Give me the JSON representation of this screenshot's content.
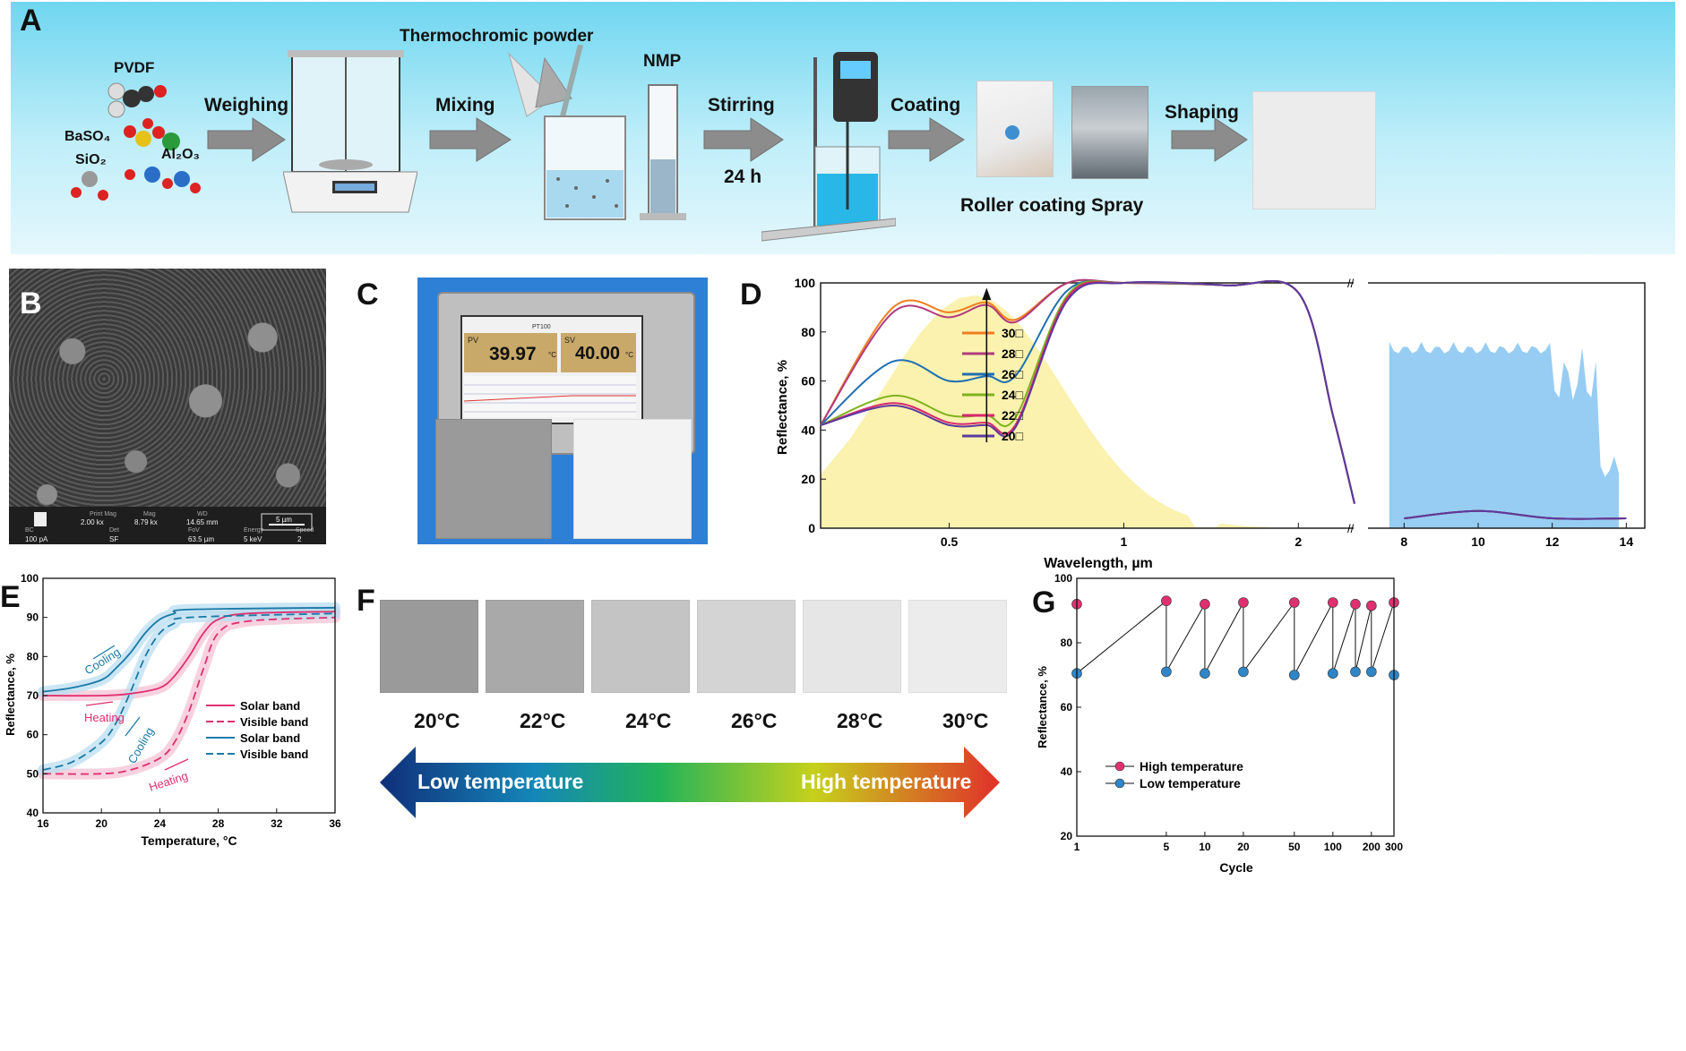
{
  "panelA": {
    "letter": "A",
    "chemicals": {
      "pvdf": "PVDF",
      "baso4": "BaSO₄",
      "sio2": "SiO₂",
      "al2o3": "Al₂O₃"
    },
    "steps": [
      "Weighing",
      "Mixing",
      "Stirring",
      "Coating",
      "Shaping"
    ],
    "thermochromic": "Thermochromic powder",
    "nmp": "NMP",
    "duration": "24 h",
    "roller": "Roller coating",
    "spray": "Spray"
  },
  "panelB": {
    "letter": "B",
    "sem_headers": [
      "Print Mag",
      "Mag",
      "WD",
      "BC",
      "Det",
      "FoV",
      "Energy",
      "Speed"
    ],
    "sem_values": [
      "2.00 kx",
      "8.79 kx",
      "14.65 mm",
      "100 pA",
      "SF",
      "63.5 µm",
      "5 keV",
      "2"
    ],
    "scale_bar": "5 µm"
  },
  "panelC": {
    "letter": "C",
    "pv_label": "PV",
    "sv_label": "SV",
    "pv_value": "39.97",
    "sv_value": "40.00",
    "unit": "°C",
    "device_model": "PT100"
  },
  "panelF": {
    "letter": "F",
    "temps": [
      "20°C",
      "22°C",
      "24°C",
      "26°C",
      "28°C",
      "30°C"
    ],
    "swatch_colors": [
      "#9a9a9a",
      "#a9a9a9",
      "#c4c4c4",
      "#d4d4d4",
      "#e6e6e6",
      "#ececec"
    ],
    "low_label": "Low temperature",
    "high_label": "High temperature"
  },
  "chart_data": [
    {
      "panel": "D",
      "type": "line",
      "xlabel": "Wavelength, µm",
      "ylabel": "Reflectance, %",
      "ylim": [
        0,
        100
      ],
      "yticks": [
        0,
        20,
        40,
        60,
        80,
        100
      ],
      "xticks_left": [
        "0.5",
        "1",
        "2"
      ],
      "xticks_right": [
        "8",
        "10",
        "12",
        "14"
      ],
      "legend_position": "center",
      "series": [
        {
          "name": "30□",
          "color": "#f07f1f",
          "x": [
            0.3,
            0.4,
            0.5,
            0.58,
            0.65,
            0.8,
            1.0,
            1.5,
            2.0,
            2.3,
            2.5,
            8,
            10,
            12,
            14
          ],
          "y": [
            42,
            90,
            88,
            92,
            85,
            100,
            100,
            99,
            96,
            45,
            10,
            4,
            7,
            4,
            4
          ]
        },
        {
          "name": "28□",
          "color": "#b03a7e",
          "x": [
            0.3,
            0.4,
            0.5,
            0.58,
            0.65,
            0.8,
            1.0,
            1.5,
            2.0,
            2.3,
            2.5,
            8,
            10,
            12,
            14
          ],
          "y": [
            42,
            88,
            86,
            91,
            84,
            100,
            100,
            99,
            96,
            45,
            10,
            4,
            7,
            4,
            4
          ]
        },
        {
          "name": "26□",
          "color": "#1f6fb2",
          "x": [
            0.3,
            0.4,
            0.5,
            0.58,
            0.65,
            0.8,
            1.0,
            1.5,
            2.0,
            2.3,
            2.5,
            8,
            10,
            12,
            14
          ],
          "y": [
            42,
            68,
            60,
            62,
            62,
            97,
            100,
            99,
            96,
            45,
            10,
            4,
            7,
            4,
            4
          ]
        },
        {
          "name": "24□",
          "color": "#7fb31c",
          "x": [
            0.3,
            0.4,
            0.5,
            0.58,
            0.65,
            0.8,
            1.0,
            1.5,
            2.0,
            2.3,
            2.5,
            8,
            10,
            12,
            14
          ],
          "y": [
            42,
            54,
            46,
            46,
            45,
            95,
            100,
            99,
            96,
            45,
            10,
            4,
            7,
            4,
            4
          ]
        },
        {
          "name": "22□",
          "color": "#d6286f",
          "x": [
            0.3,
            0.4,
            0.5,
            0.58,
            0.65,
            0.8,
            1.0,
            1.5,
            2.0,
            2.3,
            2.5,
            8,
            10,
            12,
            14
          ],
          "y": [
            42,
            51,
            43,
            43,
            42,
            94,
            100,
            99,
            96,
            45,
            10,
            4,
            7,
            4,
            4
          ]
        },
        {
          "name": "20□",
          "color": "#5b3a9e",
          "x": [
            0.3,
            0.4,
            0.5,
            0.58,
            0.65,
            0.8,
            1.0,
            1.5,
            2.0,
            2.3,
            2.5,
            8,
            10,
            12,
            14
          ],
          "y": [
            42,
            50,
            42,
            42,
            41,
            93,
            100,
            99,
            96,
            45,
            10,
            4,
            7,
            4,
            4
          ]
        }
      ]
    },
    {
      "panel": "E",
      "type": "line",
      "xlabel": "Temperature, °C",
      "ylabel": "Reflectance, %",
      "xlim": [
        16,
        36
      ],
      "ylim": [
        40,
        100
      ],
      "xticks": [
        16,
        20,
        24,
        28,
        32,
        36
      ],
      "yticks": [
        40,
        50,
        60,
        70,
        80,
        90,
        100
      ],
      "legend_position": "right",
      "annotations": [
        "Cooling",
        "Heating",
        "Cooling",
        "Heating"
      ],
      "series": [
        {
          "name": "Solar band",
          "direction": "heating",
          "color": "#e0306f",
          "dash": false,
          "x": [
            16,
            20,
            22,
            24,
            25,
            26,
            27,
            28,
            30,
            36
          ],
          "y": [
            70,
            70,
            70.5,
            72,
            75,
            80,
            86,
            89.5,
            91,
            91.5
          ]
        },
        {
          "name": "Visible band",
          "direction": "heating",
          "color": "#e0306f",
          "dash": true,
          "x": [
            16,
            20,
            22,
            24,
            25,
            26,
            27,
            28,
            30,
            36
          ],
          "y": [
            50,
            50,
            51,
            54,
            58,
            66,
            77,
            86,
            89,
            90
          ]
        },
        {
          "name": "Solar band",
          "direction": "cooling",
          "color": "#1a7aa8",
          "dash": false,
          "x": [
            16,
            18,
            20,
            21,
            22,
            23,
            24,
            25,
            26,
            36
          ],
          "y": [
            71,
            72,
            74,
            77,
            81,
            86,
            89.5,
            91,
            92,
            92.5
          ]
        },
        {
          "name": "Visible band",
          "direction": "cooling",
          "color": "#1a7aa8",
          "dash": true,
          "x": [
            16,
            18,
            20,
            21,
            22,
            23,
            24,
            25,
            26,
            36
          ],
          "y": [
            51,
            53,
            58,
            63,
            71,
            80,
            86,
            88.5,
            90,
            91
          ]
        }
      ]
    },
    {
      "panel": "G",
      "type": "line",
      "xlabel": "Cycle",
      "ylabel": "Reflectance, %",
      "xscale": "log",
      "xticks": [
        1,
        5,
        10,
        20,
        50,
        100,
        200,
        300
      ],
      "ylim": [
        20,
        100
      ],
      "yticks": [
        20,
        40,
        60,
        80,
        100
      ],
      "legend_position": "bottom-left",
      "series": [
        {
          "name": "High temperature",
          "color": "#e0306f",
          "x": [
            1,
            5,
            10,
            20,
            50,
            100,
            150,
            200,
            300
          ],
          "y": [
            92,
            93,
            92,
            92.5,
            92.5,
            92.5,
            92,
            91.5,
            92.5
          ]
        },
        {
          "name": "Low temperature",
          "color": "#2e86c8",
          "x": [
            1,
            5,
            10,
            20,
            50,
            100,
            150,
            200,
            300
          ],
          "y": [
            70.5,
            71,
            70.5,
            71,
            70,
            70.5,
            71,
            71,
            70
          ]
        }
      ]
    }
  ]
}
